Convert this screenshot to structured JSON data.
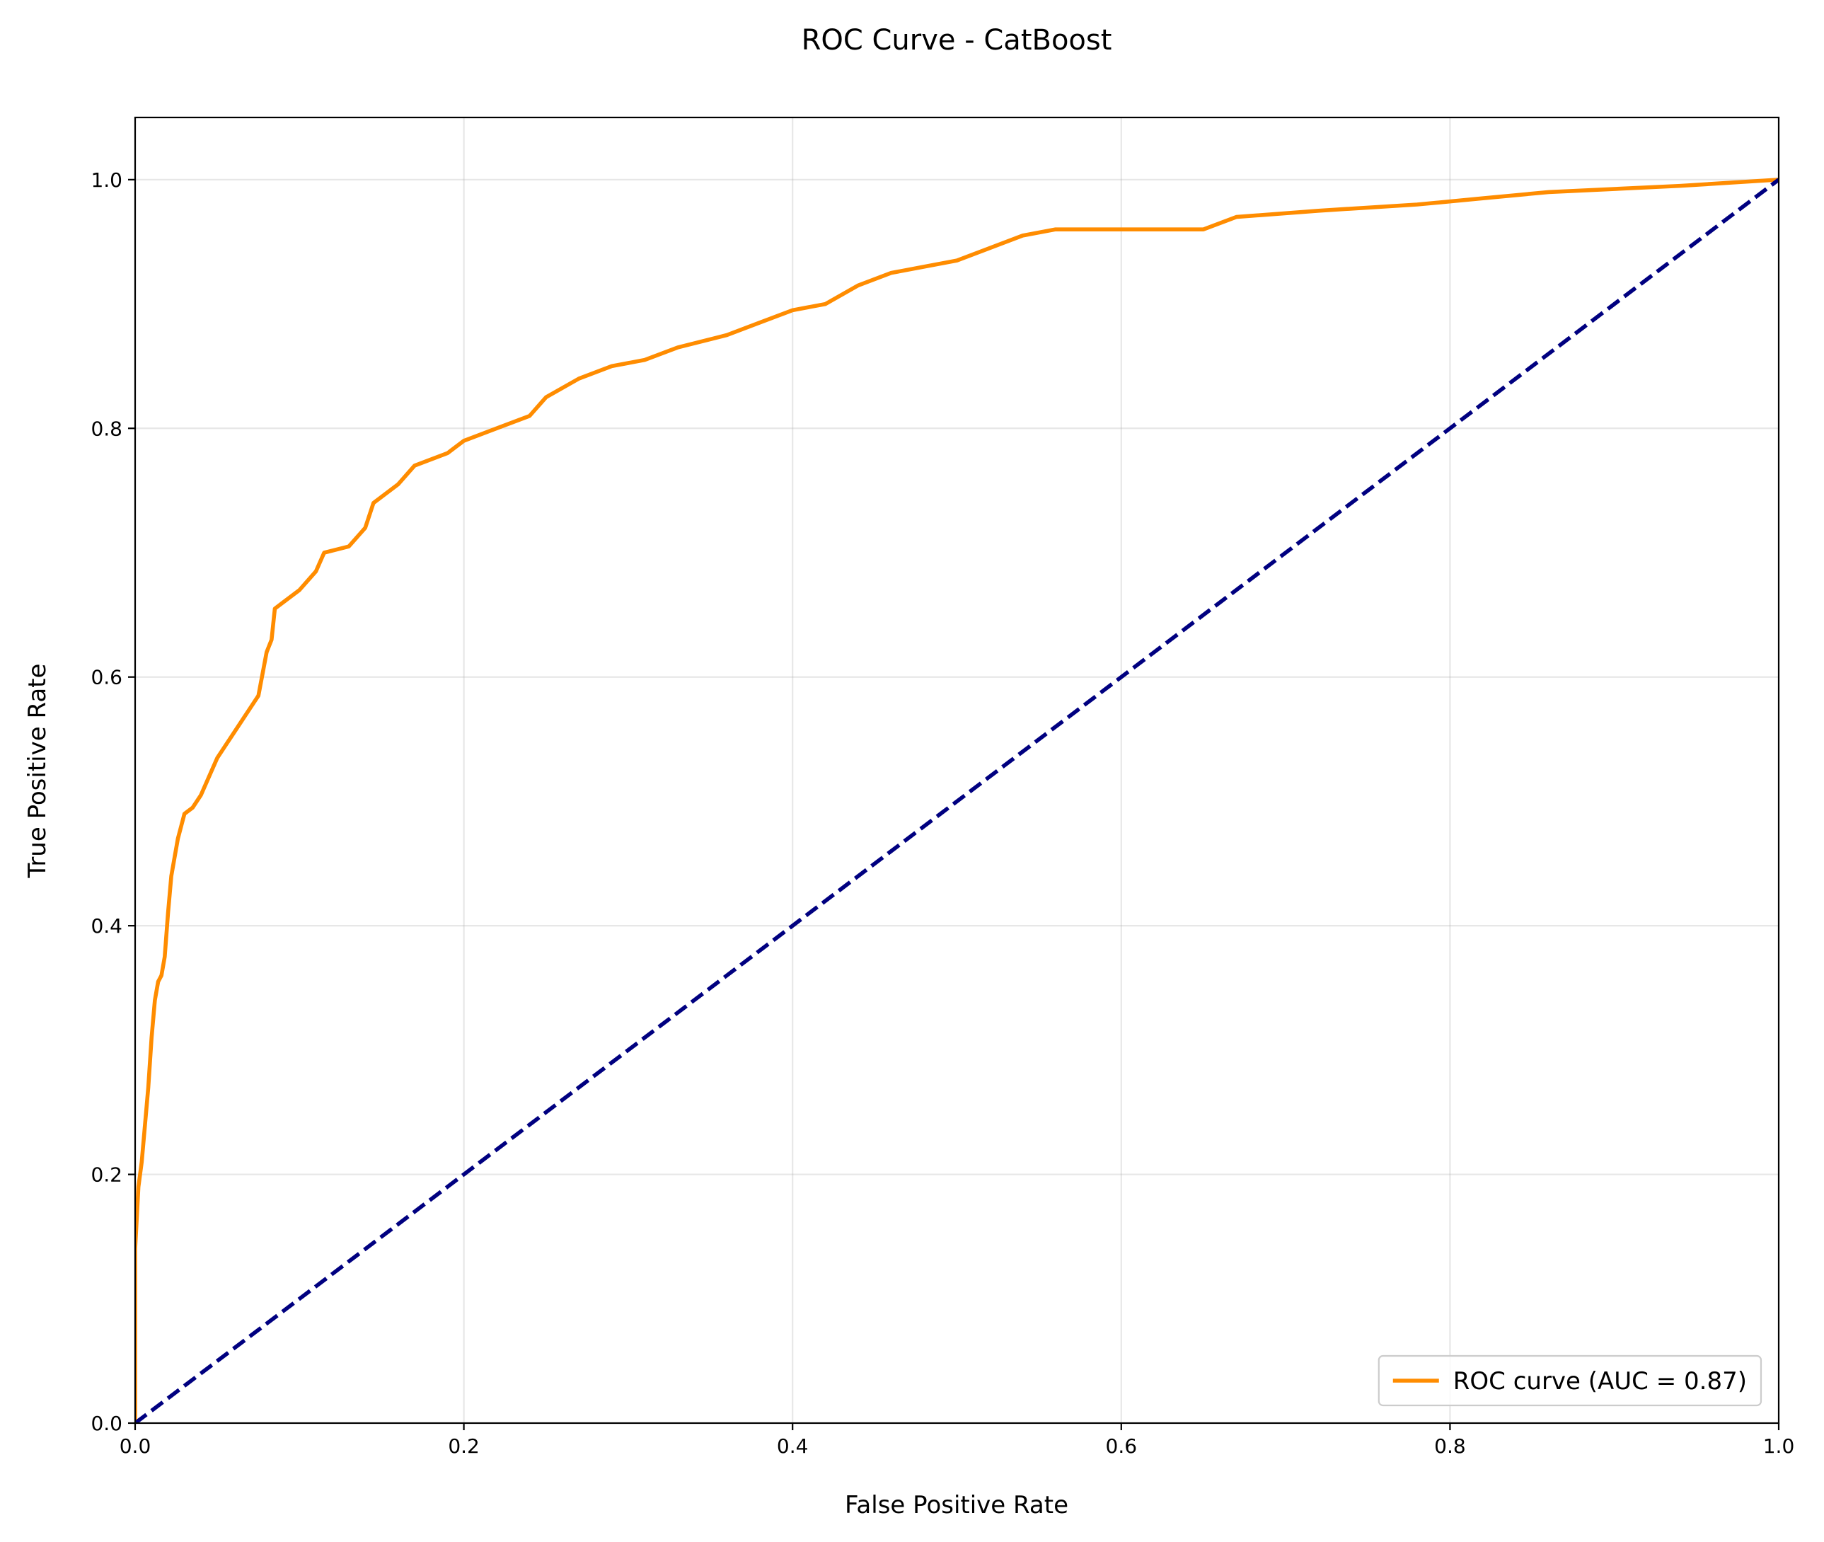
{
  "chart_data": {
    "type": "line",
    "title": "ROC Curve - CatBoost",
    "x_label": "False Positive Rate",
    "y_label": "True Positive Rate",
    "xlim": [
      0,
      1
    ],
    "ylim": [
      0,
      1.05
    ],
    "xticks": [
      {
        "value": 0,
        "label": "0.0"
      },
      0.2,
      0.4,
      0.6,
      0.8,
      {
        "value": 1,
        "label": "1.0"
      }
    ],
    "yticks": [
      {
        "value": 0,
        "label": "0.0"
      },
      0.2,
      0.4,
      0.6,
      0.8,
      {
        "value": 1,
        "label": "1.0"
      }
    ],
    "grid": true,
    "legend": "lower right",
    "series": [
      {
        "name": "ROC curve (AUC = 0.87)",
        "color": "#ff8c00",
        "dash": false,
        "x": [
          0,
          0,
          0.002,
          0.004,
          0.006,
          0.008,
          0.01,
          0.012,
          0.014,
          0.016,
          0.018,
          0.02,
          0.022,
          0.024,
          0.026,
          0.028,
          0.03,
          0.035,
          0.04,
          0.045,
          0.05,
          0.055,
          0.06,
          0.065,
          0.07,
          0.075,
          0.08,
          0.083,
          0.085,
          0.09,
          0.1,
          0.11,
          0.115,
          0.13,
          0.14,
          0.145,
          0.16,
          0.17,
          0.19,
          0.2,
          0.22,
          0.24,
          0.25,
          0.27,
          0.29,
          0.31,
          0.33,
          0.36,
          0.38,
          0.4,
          0.42,
          0.44,
          0.46,
          0.48,
          0.5,
          0.52,
          0.54,
          0.56,
          0.65,
          0.67,
          0.72,
          0.78,
          0.82,
          0.86,
          0.94,
          1.0
        ],
        "values": [
          0,
          0.14,
          0.19,
          0.21,
          0.24,
          0.27,
          0.31,
          0.34,
          0.355,
          0.36,
          0.375,
          0.41,
          0.44,
          0.455,
          0.47,
          0.48,
          0.49,
          0.495,
          0.505,
          0.52,
          0.535,
          0.545,
          0.555,
          0.565,
          0.575,
          0.585,
          0.62,
          0.63,
          0.655,
          0.66,
          0.67,
          0.685,
          0.7,
          0.705,
          0.72,
          0.74,
          0.755,
          0.77,
          0.78,
          0.79,
          0.8,
          0.81,
          0.825,
          0.84,
          0.85,
          0.855,
          0.865,
          0.875,
          0.885,
          0.895,
          0.9,
          0.915,
          0.925,
          0.93,
          0.935,
          0.945,
          0.955,
          0.96,
          0.96,
          0.97,
          0.975,
          0.98,
          0.985,
          0.99,
          0.995,
          1.0
        ]
      },
      {
        "color": "#000080",
        "dash": true,
        "x": [
          0,
          1
        ],
        "values": [
          0,
          1
        ]
      }
    ]
  }
}
